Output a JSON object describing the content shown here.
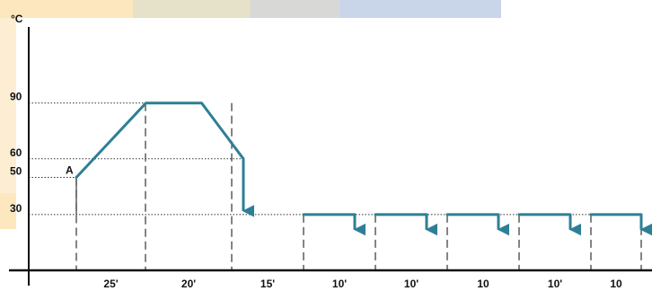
{
  "chart_data": {
    "type": "line",
    "title": "",
    "xlabel": "",
    "ylabel": "°C",
    "ylim": [
      0,
      100
    ],
    "yticks": [
      30,
      50,
      60,
      90
    ],
    "segments": [
      "25'",
      "20'",
      "15'",
      "10'",
      "10'",
      "10",
      "10'",
      "10"
    ],
    "point_label": "A",
    "series": [
      {
        "values": [
          {
            "t": 0,
            "y": 50
          },
          {
            "t": 25,
            "y": 90
          },
          {
            "t": 45,
            "y": 90
          },
          {
            "t": 60,
            "y": 60
          }
        ]
      }
    ],
    "drops": [
      {
        "from": 60,
        "to": 30
      }
    ],
    "holds": [
      {
        "y": 30,
        "drop_to": 20
      },
      {
        "y": 30,
        "drop_to": 20
      },
      {
        "y": 30,
        "drop_to": 20
      },
      {
        "y": 30,
        "drop_to": 20
      },
      {
        "y": 30,
        "drop_to": 20
      }
    ],
    "colors": {
      "line": "#2e7f95",
      "axis": "#111111",
      "grid": "#333333",
      "band_orange": "#fde7bf",
      "band_khaki": "#e6e1c9",
      "band_gray": "#d8d9d7",
      "band_blue": "#c9d6ea"
    }
  }
}
